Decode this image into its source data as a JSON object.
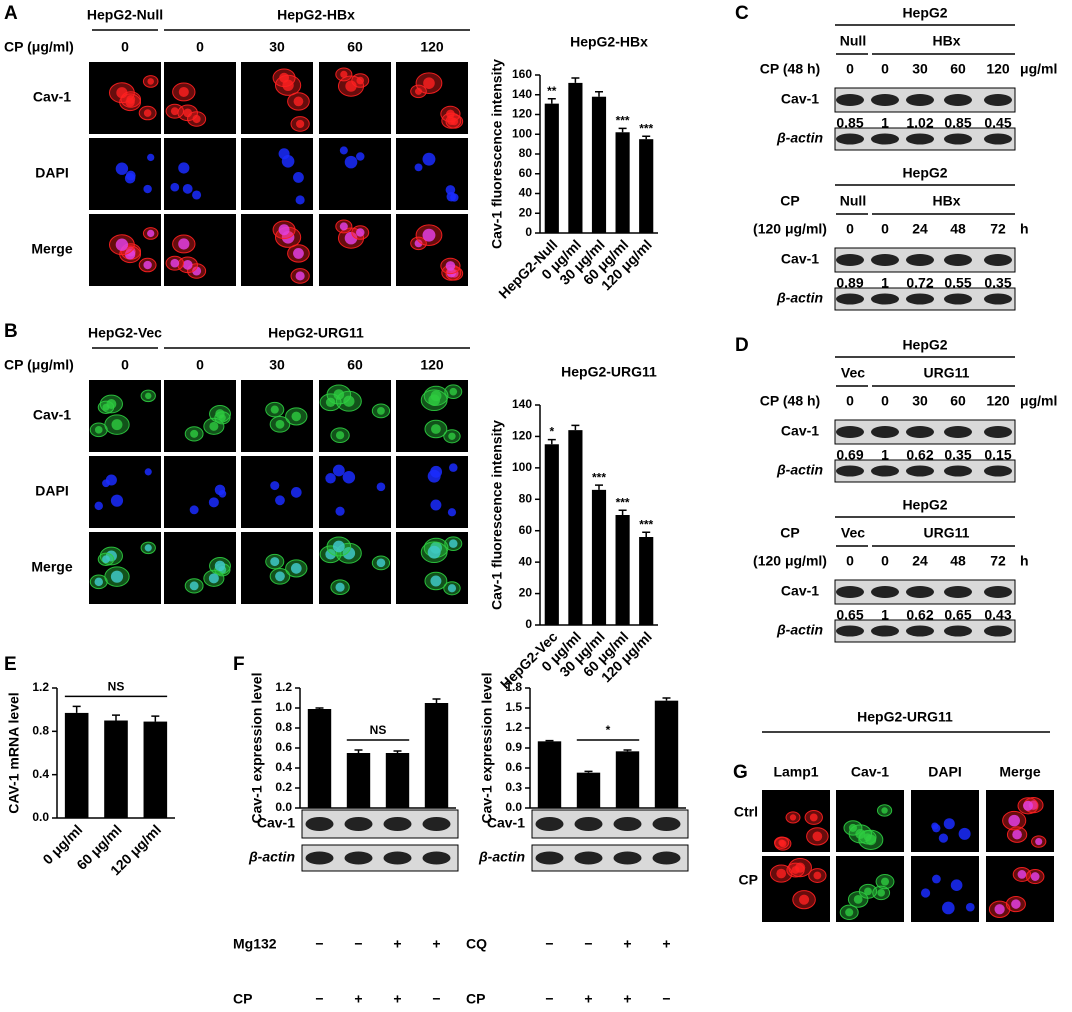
{
  "panels": {
    "A": {
      "label": "A",
      "group_headers": [
        "HepG2-Null",
        "HepG2-HBx"
      ],
      "cp_label": "CP (μg/ml)",
      "doses": [
        0,
        0,
        30,
        60,
        120
      ],
      "rows": [
        "Cav-1",
        "DAPI",
        "Merge"
      ]
    },
    "B": {
      "label": "B",
      "group_headers": [
        "HepG2-Vec",
        "HepG2-URG11"
      ],
      "cp_label": "CP (μg/ml)",
      "doses": [
        0,
        0,
        30,
        60,
        120
      ],
      "rows": [
        "Cav-1",
        "DAPI",
        "Merge"
      ]
    },
    "C": {
      "label": "C",
      "blots": [
        {
          "cell": "HepG2",
          "groups": [
            "Null",
            "HBx"
          ],
          "condition": [
            "CP (48 h)"
          ],
          "lanes": [
            0,
            0,
            30,
            60,
            120
          ],
          "unit": "μg/ml",
          "bands": [
            "Cav-1",
            "β-actin"
          ],
          "ratios": [
            0.85,
            1,
            1.02,
            0.85,
            0.45
          ]
        },
        {
          "cell": "HepG2",
          "groups": [
            "Null",
            "HBx"
          ],
          "condition": [
            "CP",
            "(120 μg/ml)"
          ],
          "lanes": [
            0,
            0,
            24,
            48,
            72
          ],
          "unit": "h",
          "bands": [
            "Cav-1",
            "β-actin"
          ],
          "ratios": [
            0.89,
            1,
            0.72,
            0.55,
            0.35
          ]
        }
      ]
    },
    "D": {
      "label": "D",
      "blots": [
        {
          "cell": "HepG2",
          "groups": [
            "Vec",
            "URG11"
          ],
          "condition": [
            "CP (48 h)"
          ],
          "lanes": [
            0,
            0,
            30,
            60,
            120
          ],
          "unit": "μg/ml",
          "bands": [
            "Cav-1",
            "β-actin"
          ],
          "ratios": [
            0.69,
            1,
            0.62,
            0.35,
            0.15
          ]
        },
        {
          "cell": "HepG2",
          "groups": [
            "Vec",
            "URG11"
          ],
          "condition": [
            "CP",
            "(120 μg/ml)"
          ],
          "lanes": [
            0,
            0,
            24,
            48,
            72
          ],
          "unit": "h",
          "bands": [
            "Cav-1",
            "β-actin"
          ],
          "ratios": [
            0.65,
            1,
            0.62,
            0.65,
            0.43
          ]
        }
      ]
    },
    "E": {
      "label": "E"
    },
    "F": {
      "label": "F"
    },
    "G": {
      "label": "G",
      "header": "HepG2-URG11",
      "columns": [
        "Lamp1",
        "Cav-1",
        "DAPI",
        "Merge"
      ],
      "rows": [
        "Ctrl",
        "CP"
      ]
    }
  },
  "chart_data": [
    {
      "type": "bar",
      "title": "HepG2-HBx",
      "ylabel": "Cav-1 fluorescence intensity",
      "categories": [
        "HepG2-Null",
        "0 μg/ml",
        "30 μg/ml",
        "60 μg/ml",
        "120 μg/ml"
      ],
      "values": [
        131,
        152,
        138,
        102,
        95
      ],
      "errors": [
        5,
        5,
        5,
        4,
        3
      ],
      "annotations": [
        "**",
        null,
        null,
        "***",
        "***"
      ],
      "color": "#000000",
      "ylim": [
        0,
        160
      ],
      "yticks": [
        0,
        20,
        40,
        60,
        80,
        100,
        120,
        140,
        160
      ]
    },
    {
      "type": "bar",
      "title": "HepG2-URG11",
      "ylabel": "Cav-1 fluorescence intensity",
      "categories": [
        "HepG2-Vec",
        "0 μg/ml",
        "30 μg/ml",
        "60 μg/ml",
        "120 μg/ml"
      ],
      "values": [
        115,
        124,
        86,
        70,
        56
      ],
      "errors": [
        3,
        3,
        3,
        3,
        3
      ],
      "annotations": [
        "*",
        null,
        "***",
        "***",
        "***"
      ],
      "color": "#000000",
      "ylim": [
        0,
        140
      ],
      "yticks": [
        0,
        20,
        40,
        60,
        80,
        100,
        120,
        140
      ]
    },
    {
      "type": "bar",
      "ylabel": "CAV-1 mRNA level",
      "categories": [
        "0 μg/ml",
        "60 μg/ml",
        "120 μg/ml"
      ],
      "values": [
        0.97,
        0.9,
        0.89
      ],
      "errors": [
        0.06,
        0.05,
        0.05
      ],
      "brackets": [
        {
          "categories": [
            0,
            2
          ],
          "label": "NS"
        }
      ],
      "color": "#000000",
      "ylim": [
        0,
        1.2
      ],
      "yticks": [
        {
          "value": 0,
          "label": "0.0"
        },
        0.4,
        0.8,
        1.2
      ]
    },
    {
      "type": "bar",
      "ylabel": "Cav-1 expression level",
      "values": [
        0.99,
        0.55,
        0.55,
        1.05
      ],
      "errors": [
        0.01,
        0.03,
        0.02,
        0.04
      ],
      "brackets": [
        {
          "categories": [
            1,
            2
          ],
          "label": "NS"
        }
      ],
      "color": "#000000",
      "ylim": [
        0,
        1.2
      ],
      "yticks": [
        {
          "value": 0,
          "label": "0.0"
        },
        0.2,
        0.4,
        0.6,
        0.8,
        {
          "value": 1,
          "label": "1.0"
        },
        1.2
      ],
      "blot_bands": [
        "Cav-1",
        "β-actin"
      ],
      "treatments": [
        {
          "name": "Mg132",
          "signs": [
            "−",
            "−",
            "+",
            "+"
          ]
        },
        {
          "name": "CP",
          "signs": [
            "−",
            "+",
            "+",
            "−"
          ]
        }
      ]
    },
    {
      "type": "bar",
      "ylabel": "Cav-1 expression level",
      "values": [
        1.0,
        0.53,
        0.85,
        1.61
      ],
      "errors": [
        0.01,
        0.02,
        0.02,
        0.04
      ],
      "brackets": [
        {
          "categories": [
            1,
            2
          ],
          "label": "*"
        }
      ],
      "color": "#000000",
      "ylim": [
        0,
        1.8
      ],
      "yticks": [
        {
          "value": 0,
          "label": "0.0"
        },
        0.3,
        0.6,
        0.9,
        1.2,
        1.5,
        1.8
      ],
      "blot_bands": [
        "Cav-1",
        "β-actin"
      ],
      "treatments": [
        {
          "name": "CQ",
          "signs": [
            "−",
            "−",
            "+",
            "+"
          ]
        },
        {
          "name": "CP",
          "signs": [
            "−",
            "+",
            "+",
            "−"
          ]
        }
      ]
    }
  ]
}
